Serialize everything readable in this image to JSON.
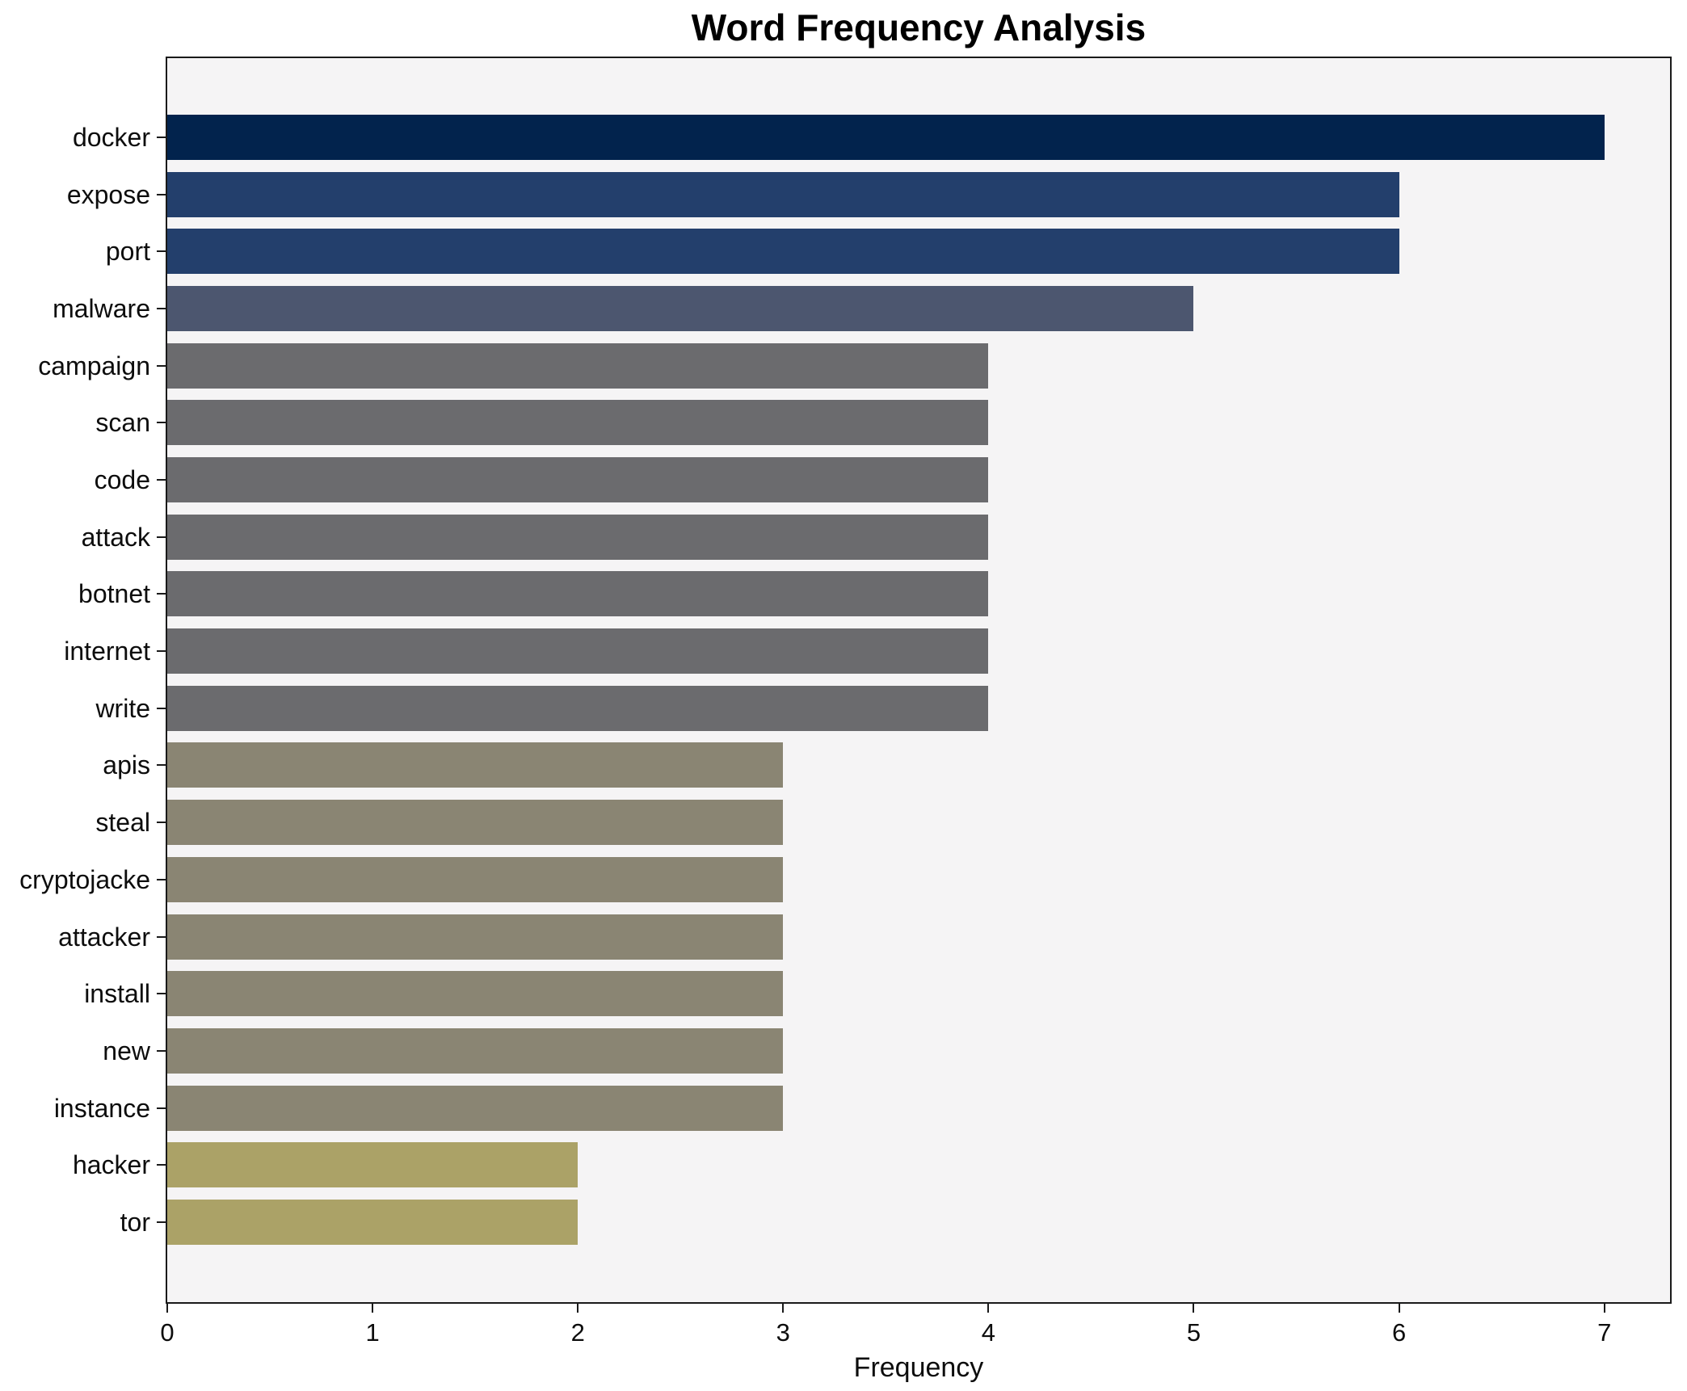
{
  "chart_data": {
    "type": "bar",
    "orientation": "horizontal",
    "title": "Word Frequency Analysis",
    "xlabel": "Frequency",
    "ylabel": "",
    "categories": [
      "docker",
      "expose",
      "port",
      "malware",
      "campaign",
      "scan",
      "code",
      "attack",
      "botnet",
      "internet",
      "write",
      "apis",
      "steal",
      "cryptojacke",
      "attacker",
      "install",
      "new",
      "instance",
      "hacker",
      "tor"
    ],
    "values": [
      7,
      6,
      6,
      5,
      4,
      4,
      4,
      4,
      4,
      4,
      4,
      3,
      3,
      3,
      3,
      3,
      3,
      3,
      2,
      2
    ],
    "x_ticks": [
      0,
      1,
      2,
      3,
      4,
      5,
      6,
      7
    ],
    "xlim": [
      0,
      7.32
    ],
    "grid": false,
    "legend": false,
    "colors_by_value": {
      "7": "#02234d",
      "6": "#233f6c",
      "5": "#4c566f",
      "4": "#6b6b6e",
      "3": "#8a8573",
      "2": "#aba267"
    },
    "plot_background": "#f5f4f5",
    "figure_background": "#ffffff",
    "spine_color": "#1a1a1a"
  }
}
